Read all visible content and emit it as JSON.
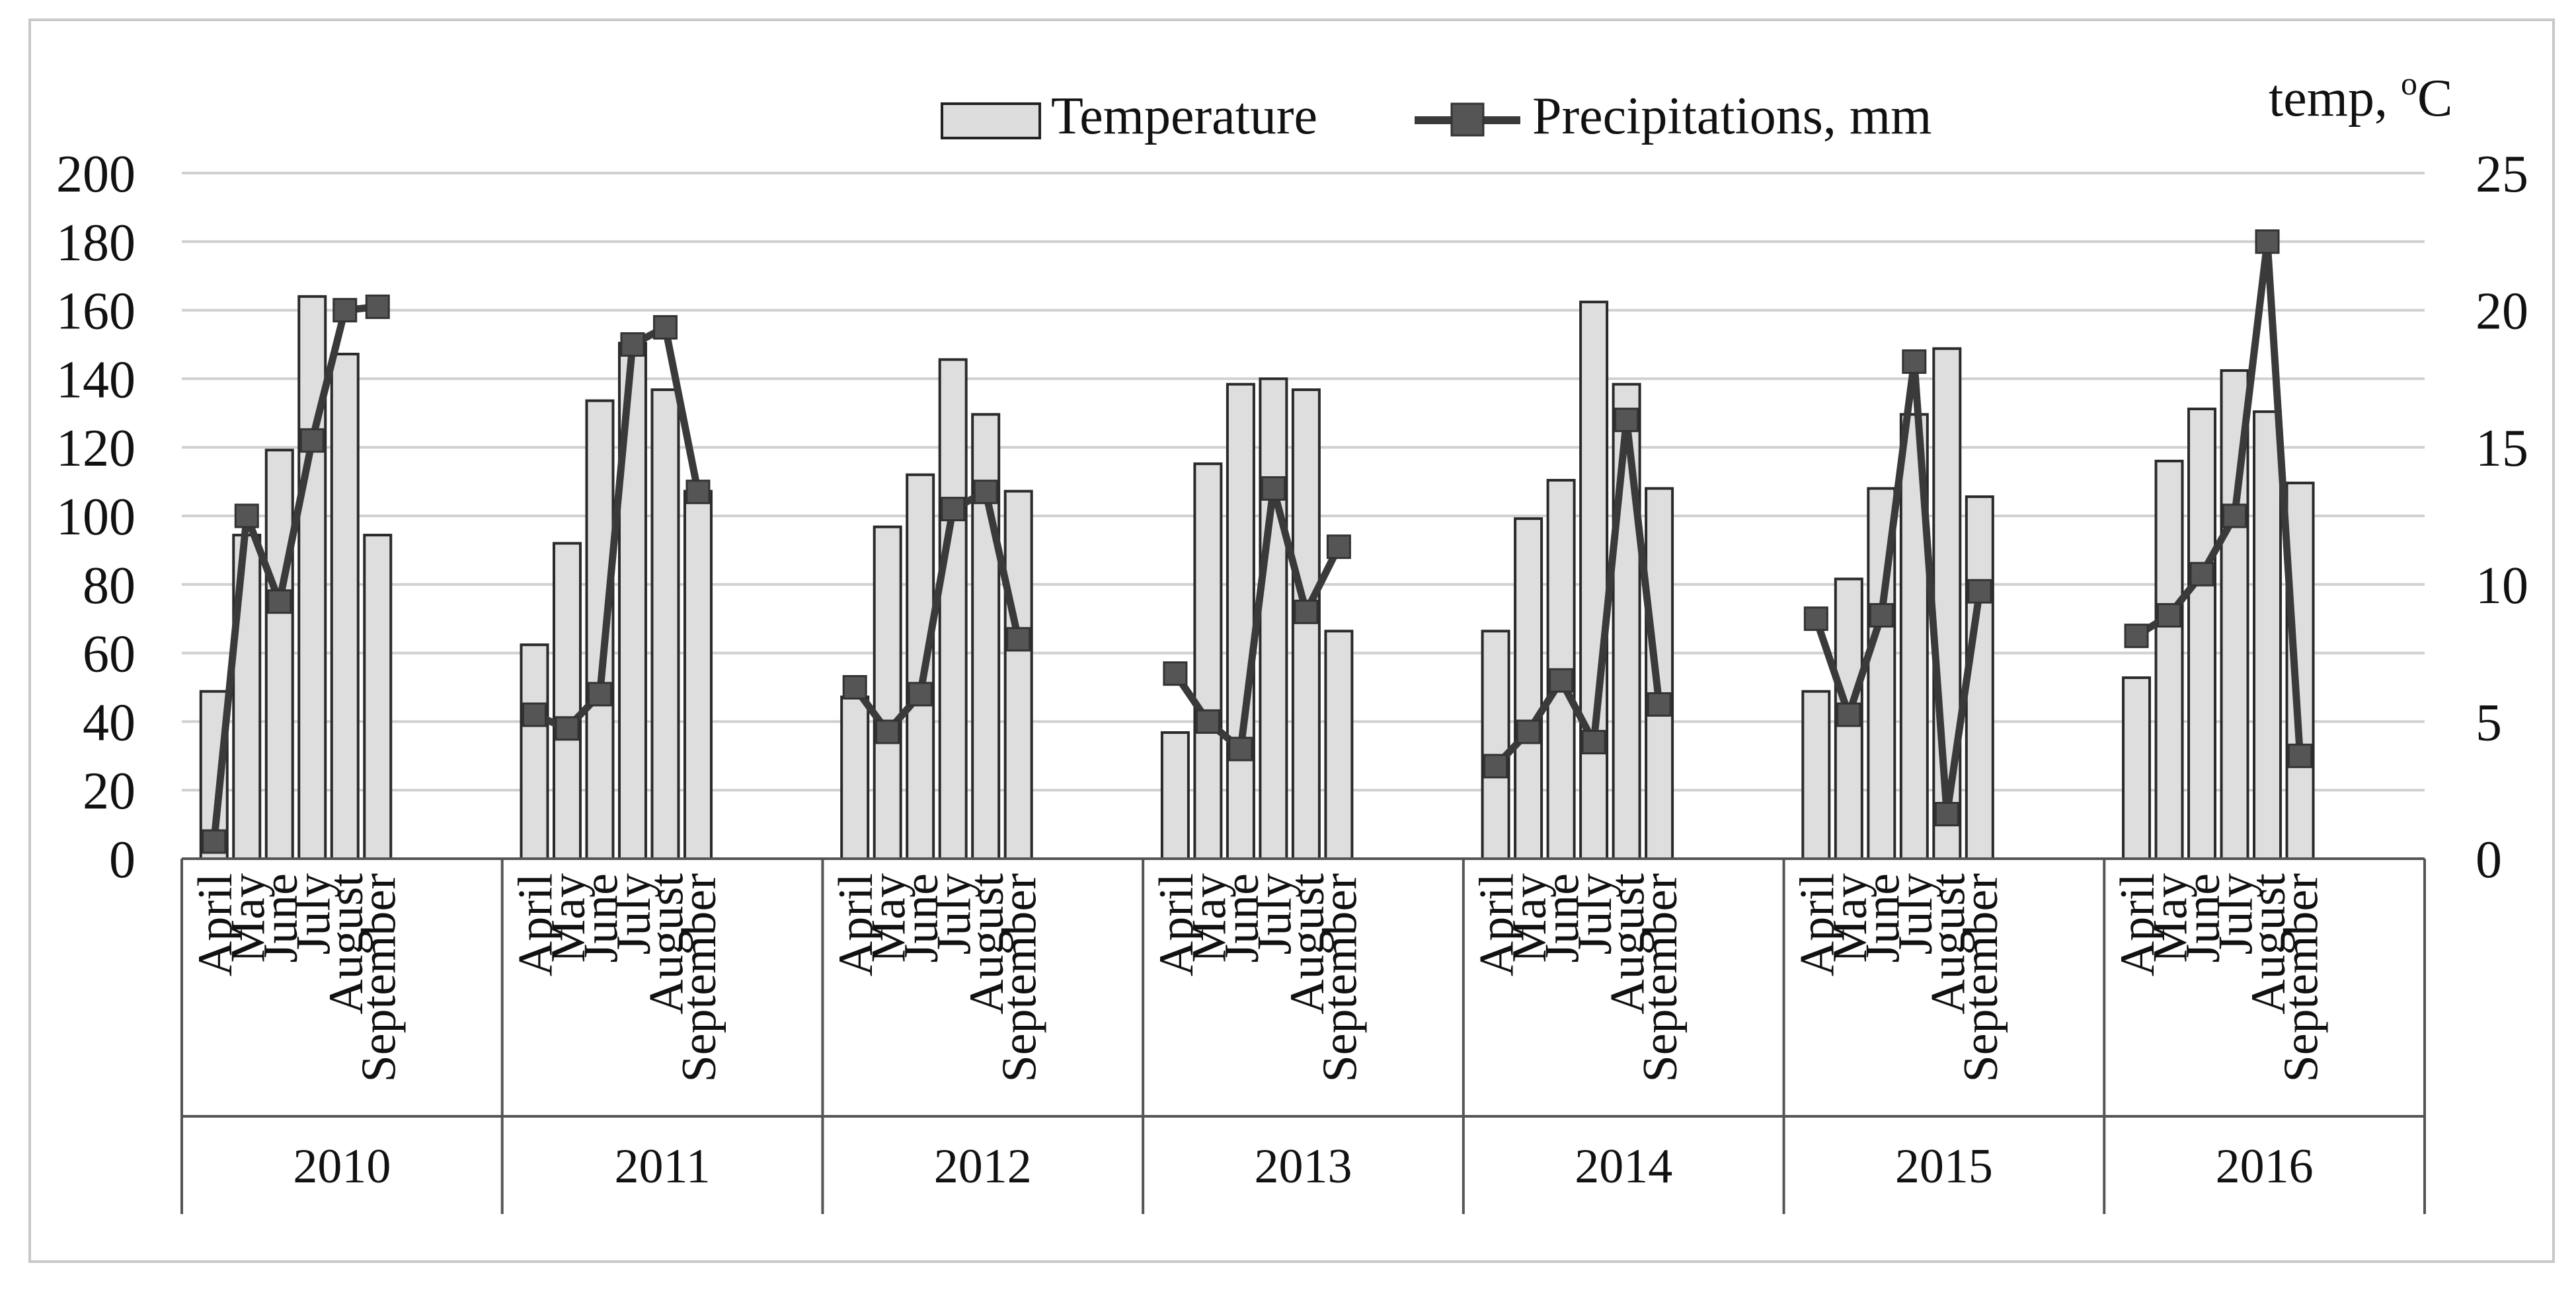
{
  "chart_data": {
    "type": "bar+line",
    "title": "",
    "legend": {
      "bar_label": "Temperature",
      "line_label": "Precipitations, mm",
      "position": "top-center"
    },
    "y_left": {
      "label": "",
      "min": 0,
      "max": 200,
      "step": 20,
      "ticks": [
        "0",
        "20",
        "40",
        "60",
        "80",
        "100",
        "120",
        "140",
        "160",
        "180",
        "200"
      ]
    },
    "y_right": {
      "label_text": "temp, ",
      "label_sup": "o",
      "label_unit": "C",
      "min": 0,
      "max": 25,
      "step": 5,
      "ticks": [
        "0",
        "5",
        "10",
        "15",
        "20",
        "25"
      ]
    },
    "months": [
      "April",
      "May",
      "June",
      "July",
      "August",
      "September"
    ],
    "years": [
      "2010",
      "2011",
      "2012",
      "2013",
      "2014",
      "2015",
      "2016"
    ],
    "series": [
      {
        "name": "Temperature",
        "kind": "bar",
        "axis": "right",
        "note": "values in °C, read against right axis",
        "values": [
          [
            6.1,
            11.8,
            14.9,
            20.5,
            18.4,
            11.8
          ],
          [
            7.8,
            11.5,
            16.7,
            18.8,
            17.1,
            13.4
          ],
          [
            5.9,
            12.1,
            14.0,
            18.2,
            16.2,
            13.4
          ],
          [
            4.6,
            14.4,
            17.3,
            17.5,
            17.1,
            8.3
          ],
          [
            8.3,
            12.4,
            13.8,
            20.3,
            17.3,
            13.5
          ],
          [
            6.1,
            10.2,
            13.5,
            16.2,
            18.6,
            13.2
          ],
          [
            6.6,
            14.5,
            16.4,
            17.8,
            16.3,
            13.7
          ]
        ]
      },
      {
        "name": "Precipitations, mm",
        "kind": "line",
        "axis": "left",
        "values": [
          [
            5,
            100,
            75,
            122,
            160,
            161
          ],
          [
            42,
            38,
            48,
            150,
            155,
            107
          ],
          [
            50,
            37,
            48,
            102,
            107,
            64
          ],
          [
            54,
            40,
            32,
            108,
            72,
            91
          ],
          [
            27,
            37,
            52,
            34,
            128,
            45
          ],
          [
            70,
            42,
            71,
            145,
            13,
            78
          ],
          [
            65,
            71,
            83,
            100,
            180,
            30
          ]
        ]
      }
    ],
    "grid": true
  }
}
